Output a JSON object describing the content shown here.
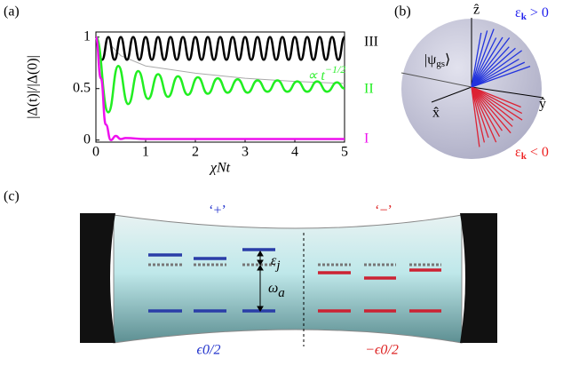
{
  "panel_labels": [
    "(a)",
    "(b)",
    "(c)"
  ],
  "chart_data": {
    "type": "line",
    "x_label": "χNt",
    "y_label": "|Δ(t)|/|Δ(0)|",
    "xlim": [
      0,
      5
    ],
    "ylim": [
      -0.02,
      1.05
    ],
    "xticks": [
      0,
      1,
      2,
      3,
      4,
      5
    ],
    "yticks": [
      0,
      0.5,
      1
    ],
    "annotation": {
      "text": "∝ t",
      "superscript": "−1/2",
      "color": "#33ee33"
    },
    "series": [
      {
        "name": "III",
        "color": "#000000",
        "x": [
          0,
          0.125,
          0.25,
          0.375,
          0.5,
          0.625,
          0.75,
          0.875,
          1,
          1.125,
          1.25,
          1.375,
          1.5,
          1.625,
          1.75,
          1.875,
          2,
          2.125,
          2.25,
          2.375,
          2.5,
          2.625,
          2.75,
          2.875,
          3,
          3.125,
          3.25,
          3.375,
          3.5,
          3.625,
          3.75,
          3.875,
          4,
          4.125,
          4.25,
          4.375,
          4.5,
          4.625,
          4.75,
          4.875,
          5
        ],
        "values": [
          1,
          0.78,
          1,
          0.78,
          1,
          0.78,
          1,
          0.78,
          1,
          0.78,
          1,
          0.78,
          1,
          0.78,
          1,
          0.78,
          1,
          0.78,
          1,
          0.78,
          1,
          0.78,
          1,
          0.78,
          1,
          0.78,
          1,
          0.78,
          1,
          0.78,
          1,
          0.78,
          1,
          0.78,
          1,
          0.78,
          1,
          0.78,
          1,
          0.78,
          1
        ]
      },
      {
        "name": "II",
        "color": "#22ee22",
        "x": [
          0,
          0.25,
          0.45,
          0.65,
          0.85,
          1.05,
          1.25,
          1.45,
          1.65,
          1.85,
          2.05,
          2.25,
          2.45,
          2.65,
          2.85,
          3.05,
          3.25,
          3.45,
          3.65,
          3.85,
          4.05,
          4.25,
          4.45,
          4.65,
          4.85,
          5
        ],
        "values": [
          1,
          0.27,
          0.72,
          0.35,
          0.67,
          0.4,
          0.64,
          0.42,
          0.62,
          0.44,
          0.61,
          0.45,
          0.6,
          0.46,
          0.59,
          0.46,
          0.58,
          0.47,
          0.58,
          0.47,
          0.57,
          0.47,
          0.57,
          0.47,
          0.56,
          0.5
        ]
      },
      {
        "name": "I",
        "color": "#ee11ee",
        "x": [
          0,
          0.1,
          0.2,
          0.3,
          0.4,
          0.5,
          0.6,
          1,
          5
        ],
        "values": [
          1,
          0.6,
          0.15,
          0,
          0.04,
          0.01,
          0.02,
          0.01,
          0.01
        ]
      }
    ],
    "envelope": {
      "color": "#aaaaaa",
      "x": [
        0.3,
        0.5,
        1,
        2,
        3,
        4,
        5
      ],
      "values": [
        0.92,
        0.82,
        0.72,
        0.65,
        0.6,
        0.57,
        0.55
      ]
    }
  },
  "panel_b": {
    "z_axis": "ẑ",
    "y_axis": "ŷ",
    "x_axis": "x̂",
    "state": [
      "|ψ",
      "gs",
      "⟩"
    ],
    "positive": [
      "ε",
      "k",
      " > 0"
    ],
    "negative": [
      "ε",
      "k",
      " < 0"
    ]
  },
  "panel_c": {
    "plus": "‘+’",
    "minus": "‘−’",
    "epsilon_j": [
      "ε",
      "j"
    ],
    "omega_a": [
      "ω",
      "a"
    ],
    "plus_energy": "ϵ0/2",
    "minus_energy": "−ϵ0/2"
  }
}
